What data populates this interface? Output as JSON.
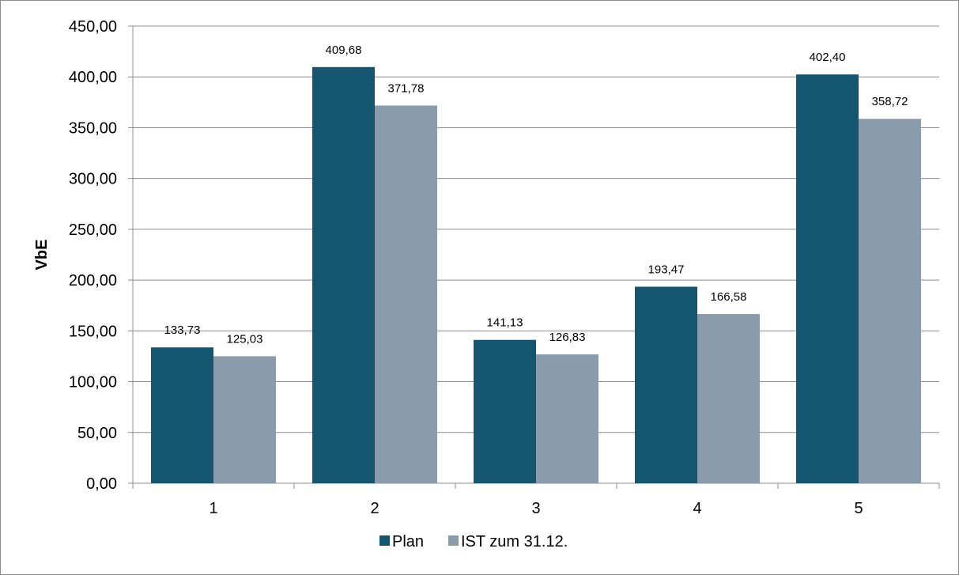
{
  "chart_data": {
    "type": "bar",
    "categories": [
      "1",
      "2",
      "3",
      "4",
      "5"
    ],
    "series": [
      {
        "name": "Plan",
        "values": [
          133.73,
          409.68,
          141.13,
          193.47,
          402.4
        ],
        "labels": [
          "133,73",
          "409,68",
          "141,13",
          "193,47",
          "402,40"
        ],
        "color": "#14566f"
      },
      {
        "name": "IST zum 31.12.",
        "values": [
          125.03,
          371.78,
          126.83,
          166.58,
          358.72
        ],
        "labels": [
          "125,03",
          "371,78",
          "126,83",
          "166,58",
          "358,72"
        ],
        "color": "#8a9bab"
      }
    ],
    "ylabel": "VbE",
    "xlabel": "",
    "ylim": [
      0,
      450
    ],
    "yticks": [
      0,
      50,
      100,
      150,
      200,
      250,
      300,
      350,
      400,
      450
    ],
    "ytick_labels": [
      "0,00",
      "50,00",
      "100,00",
      "150,00",
      "200,00",
      "250,00",
      "300,00",
      "350,00",
      "400,00",
      "450,00"
    ],
    "grid": true,
    "legend_position": "bottom"
  }
}
